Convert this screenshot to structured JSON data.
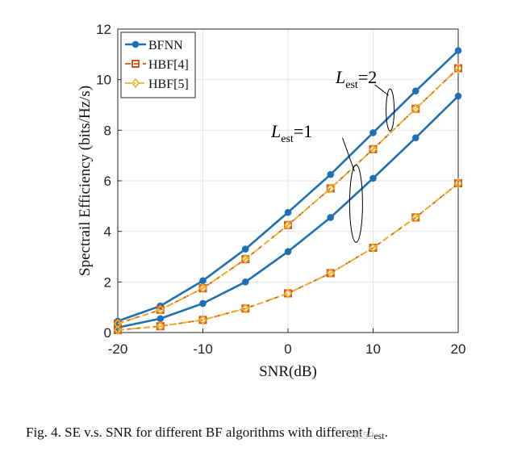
{
  "chart_data": {
    "type": "line",
    "x": [
      -20,
      -15,
      -10,
      -5,
      0,
      5,
      10,
      15,
      20
    ],
    "xlabel": "SNR(dB)",
    "ylabel": "Spectrail Efficiency (bits/Hz/s)",
    "xlim": [
      -20,
      20
    ],
    "ylim": [
      0,
      12
    ],
    "xticks": [
      -20,
      -10,
      0,
      10,
      20
    ],
    "yticks": [
      0,
      2,
      4,
      6,
      8,
      10,
      12
    ],
    "grid": true,
    "legend_position": "top-left",
    "legend": [
      {
        "name": "BFNN",
        "color": "#1f6fb4",
        "marker": "circle",
        "dash": "solid"
      },
      {
        "name": "HBF[4]",
        "color": "#d95319",
        "marker": "square",
        "dash": "dashed"
      },
      {
        "name": "HBF[5]",
        "color": "#edb120",
        "marker": "diamond",
        "dash": "dashdot"
      }
    ],
    "series": [
      {
        "name": "BFNN",
        "group": "Lest=2",
        "color": "#1f6fb4",
        "marker": "circle",
        "dash": "solid",
        "values": [
          0.45,
          1.05,
          2.05,
          3.3,
          4.75,
          6.25,
          7.9,
          9.55,
          11.15
        ]
      },
      {
        "name": "BFNN",
        "group": "Lest=1",
        "color": "#1f6fb4",
        "marker": "circle",
        "dash": "solid",
        "values": [
          0.2,
          0.55,
          1.15,
          2.0,
          3.2,
          4.55,
          6.1,
          7.7,
          9.35
        ]
      },
      {
        "name": "HBF[4]",
        "group": "Lest=2",
        "color": "#d95319",
        "marker": "square",
        "dash": "dashed",
        "values": [
          0.35,
          0.9,
          1.75,
          2.9,
          4.25,
          5.7,
          7.25,
          8.85,
          10.45
        ]
      },
      {
        "name": "HBF[4]",
        "group": "Lest=1",
        "color": "#d95319",
        "marker": "square",
        "dash": "dashed",
        "values": [
          0.1,
          0.25,
          0.5,
          0.95,
          1.55,
          2.35,
          3.35,
          4.55,
          5.9
        ]
      },
      {
        "name": "HBF[5]",
        "group": "Lest=2",
        "color": "#edb120",
        "marker": "diamond",
        "dash": "dashdot",
        "values": [
          0.35,
          0.9,
          1.75,
          2.9,
          4.25,
          5.7,
          7.25,
          8.85,
          10.45
        ]
      },
      {
        "name": "HBF[5]",
        "group": "Lest=1",
        "color": "#edb120",
        "marker": "diamond",
        "dash": "dashdot",
        "values": [
          0.1,
          0.25,
          0.5,
          0.95,
          1.55,
          2.35,
          3.35,
          4.55,
          5.9
        ]
      }
    ],
    "annotations": [
      {
        "label": "L",
        "sub": "est",
        "value": "=2"
      },
      {
        "label": "L",
        "sub": "est",
        "value": "=1"
      }
    ]
  },
  "caption": {
    "text": "Fig. 4. SE v.s. SNR for different BF algorithms with different ",
    "var": "L",
    "sub": "est",
    "end": "."
  },
  "watermark": "74659"
}
